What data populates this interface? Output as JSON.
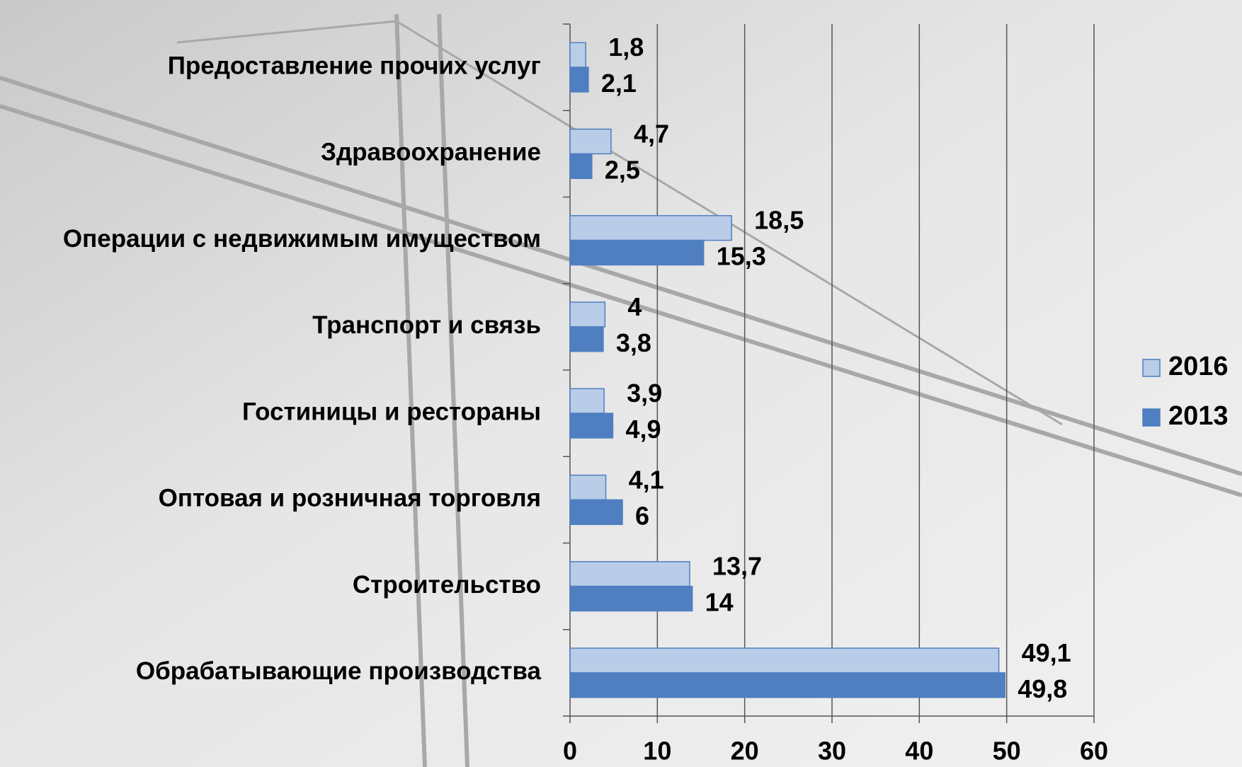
{
  "chart_data": {
    "type": "barh",
    "categories": [
      "Предоставление прочих услуг",
      "Здравоохранение",
      "Операции с недвижимым имуществом",
      "Транспорт и связь",
      "Гостиницы и рестораны",
      "Оптовая и розничная торговля",
      "Строительство",
      "Обрабатывающие производства"
    ],
    "series": [
      {
        "name": "2016",
        "color": "#b9cde8",
        "values": [
          1.8,
          4.7,
          18.5,
          4,
          3.9,
          4.1,
          13.7,
          49.1
        ],
        "value_labels": [
          "1,8",
          "4,7",
          "18,5",
          "4",
          "3,9",
          "4,1",
          "13,7",
          "49,1"
        ]
      },
      {
        "name": "2013",
        "color": "#4f7fc0",
        "values": [
          2.1,
          2.5,
          15.3,
          3.8,
          4.9,
          6,
          14,
          49.8
        ],
        "value_labels": [
          "2,1",
          "2,5",
          "15,3",
          "3,8",
          "4,9",
          "6",
          "14",
          "49,8"
        ]
      }
    ],
    "xlim": [
      0,
      60
    ],
    "xticks": [
      0,
      10,
      20,
      30,
      40,
      50,
      60
    ],
    "grid": true,
    "legend": "right"
  }
}
